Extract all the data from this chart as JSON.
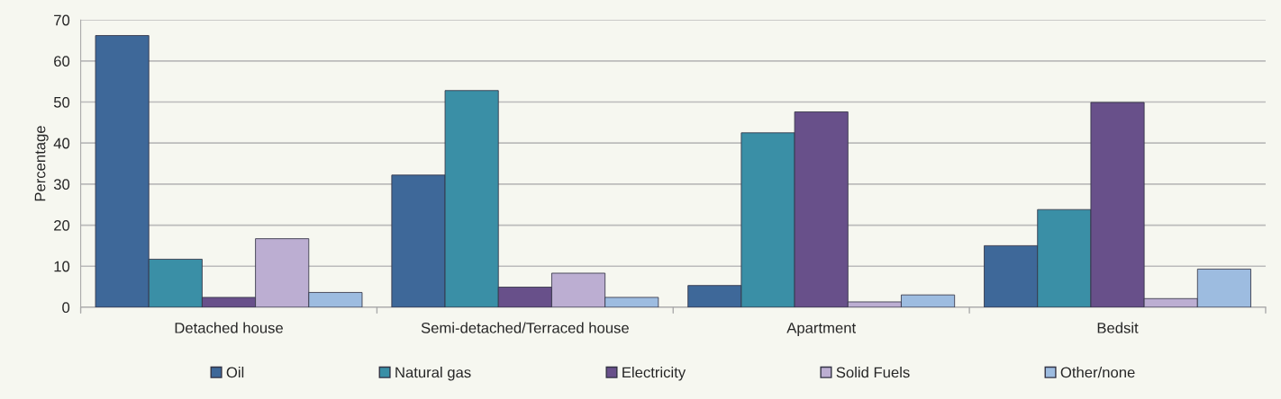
{
  "chart_data": {
    "type": "bar",
    "ylabel": "Percentage",
    "categories": [
      "Detached house",
      "Semi-detached/Terraced house",
      "Apartment",
      "Bedsit"
    ],
    "series": [
      {
        "name": "Oil",
        "color": "#3e6899",
        "values": [
          66.2,
          32.2,
          5.3,
          15.0
        ]
      },
      {
        "name": "Natural gas",
        "color": "#3a8fa6",
        "values": [
          11.7,
          52.8,
          42.5,
          23.8
        ]
      },
      {
        "name": "Electricity",
        "color": "#68508a",
        "values": [
          2.4,
          4.9,
          47.6,
          49.9
        ]
      },
      {
        "name": "Solid Fuels",
        "color": "#bcaed2",
        "values": [
          16.7,
          8.3,
          1.3,
          2.1
        ]
      },
      {
        "name": "Other/none",
        "color": "#9dbce0",
        "values": [
          3.6,
          2.4,
          3.0,
          9.3
        ]
      }
    ],
    "ylim": [
      0,
      70
    ],
    "yticks": [
      0,
      10,
      20,
      30,
      40,
      50,
      60,
      70
    ],
    "grid": "y",
    "legend": "bottom"
  }
}
